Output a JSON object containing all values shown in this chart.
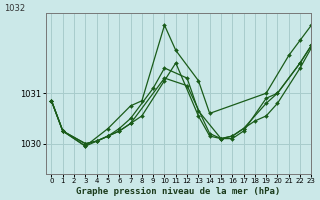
{
  "title": "Graphe pression niveau de la mer (hPa)",
  "bg_color": "#cbe8e8",
  "grid_color": "#a8cccc",
  "line_color": "#1a5c1a",
  "xlim": [
    -0.5,
    23
  ],
  "ylim": [
    1029.4,
    1032.6
  ],
  "yticks": [
    1030,
    1031
  ],
  "ytop_label": "1032",
  "xticks": [
    0,
    1,
    2,
    3,
    4,
    5,
    6,
    7,
    8,
    9,
    10,
    11,
    12,
    13,
    14,
    15,
    16,
    17,
    18,
    19,
    20,
    21,
    22,
    23
  ],
  "series": [
    {
      "x": [
        0,
        1,
        3,
        5,
        7,
        8,
        10,
        11,
        13,
        14,
        19,
        21,
        22,
        23
      ],
      "y": [
        1030.85,
        1030.25,
        1029.95,
        1030.3,
        1030.75,
        1030.85,
        1032.35,
        1031.85,
        1031.25,
        1030.6,
        1031.0,
        1031.75,
        1032.05,
        1032.35
      ]
    },
    {
      "x": [
        0,
        1,
        3,
        4,
        5,
        6,
        7,
        9,
        10,
        12,
        13,
        15,
        16,
        17,
        19,
        20,
        22,
        23
      ],
      "y": [
        1030.85,
        1030.25,
        1029.95,
        1030.05,
        1030.15,
        1030.3,
        1030.5,
        1031.1,
        1031.5,
        1031.3,
        1030.65,
        1030.1,
        1030.1,
        1030.25,
        1030.9,
        1031.0,
        1031.6,
        1031.95
      ]
    },
    {
      "x": [
        0,
        1,
        3,
        4,
        5,
        6,
        7,
        10,
        12,
        14,
        15,
        16,
        17,
        19,
        20,
        22,
        23
      ],
      "y": [
        1030.85,
        1030.25,
        1030.0,
        1030.05,
        1030.15,
        1030.25,
        1030.4,
        1031.3,
        1031.15,
        1030.2,
        1030.1,
        1030.15,
        1030.3,
        1030.8,
        1031.0,
        1031.6,
        1031.95
      ]
    },
    {
      "x": [
        0,
        1,
        3,
        4,
        5,
        6,
        7,
        8,
        10,
        11,
        13,
        14,
        15,
        16,
        17,
        18,
        19,
        20,
        22,
        23
      ],
      "y": [
        1030.85,
        1030.25,
        1030.0,
        1030.05,
        1030.15,
        1030.25,
        1030.4,
        1030.55,
        1031.25,
        1031.6,
        1030.55,
        1030.15,
        1030.1,
        1030.15,
        1030.3,
        1030.45,
        1030.55,
        1030.8,
        1031.5,
        1031.9
      ]
    }
  ]
}
